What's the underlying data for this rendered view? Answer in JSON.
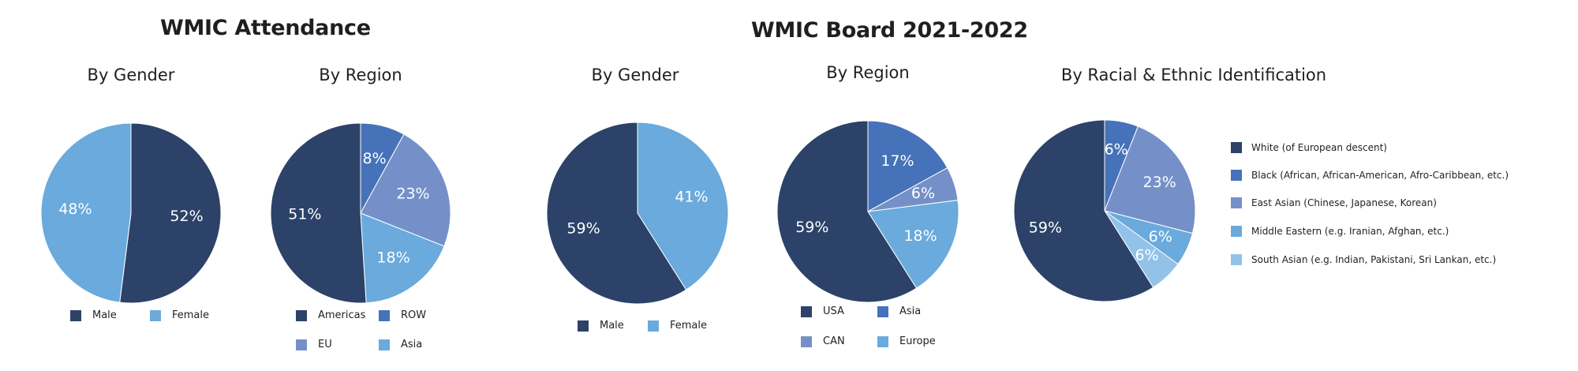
{
  "colors": {
    "navy": "#2c4268",
    "blue": "#4672b9",
    "periwinkle": "#7590c8",
    "sky": "#6aaadc",
    "light": "#93c2e8"
  },
  "headings": {
    "attendance": "WMIC Attendance",
    "board": "WMIC Board 2021-2022"
  },
  "chart_data": [
    {
      "type": "pie",
      "group": "WMIC Attendance",
      "title": "By Gender",
      "slices": [
        {
          "label": "Male",
          "value": 52,
          "display": "52%",
          "color": "#2c4268"
        },
        {
          "label": "Female",
          "value": 48,
          "display": "48%",
          "color": "#6aaadc"
        }
      ],
      "legend": [
        "Male",
        "Female"
      ],
      "legend_placement": "bottom"
    },
    {
      "type": "pie",
      "group": "WMIC Attendance",
      "title": "By Region",
      "slices": [
        {
          "label": "ROW",
          "value": 8,
          "display": "8%",
          "color": "#4672b9"
        },
        {
          "label": "EU",
          "value": 23,
          "display": "23%",
          "color": "#7590c8"
        },
        {
          "label": "Asia",
          "value": 18,
          "display": "18%",
          "color": "#6aaadc"
        },
        {
          "label": "Americas",
          "value": 51,
          "display": "51%",
          "color": "#2c4268"
        }
      ],
      "legend": [
        "Americas",
        "ROW",
        "EU",
        "Asia"
      ],
      "legend_placement": "bottom"
    },
    {
      "type": "pie",
      "group": "WMIC Board 2021-2022",
      "title": "By Gender",
      "slices": [
        {
          "label": "Female",
          "value": 41,
          "display": "41%",
          "color": "#6aaadc"
        },
        {
          "label": "Male",
          "value": 59,
          "display": "59%",
          "color": "#2c4268"
        }
      ],
      "legend": [
        "Male",
        "Female"
      ],
      "legend_placement": "bottom"
    },
    {
      "type": "pie",
      "group": "WMIC Board 2021-2022",
      "title": "By Region",
      "slices": [
        {
          "label": "Asia",
          "value": 17,
          "display": "17%",
          "color": "#4672b9"
        },
        {
          "label": "CAN",
          "value": 6,
          "display": "6%",
          "color": "#7590c8"
        },
        {
          "label": "Europe",
          "value": 18,
          "display": "18%",
          "color": "#6aaadc"
        },
        {
          "label": "USA",
          "value": 59,
          "display": "59%",
          "color": "#2c4268"
        }
      ],
      "legend": [
        "USA",
        "Asia",
        "CAN",
        "Europe"
      ],
      "legend_placement": "bottom"
    },
    {
      "type": "pie",
      "group": "WMIC Board 2021-2022",
      "title": "By Racial & Ethnic Identification",
      "slices": [
        {
          "label": "Black (African, African-American, Afro-Caribbean, etc.)",
          "value": 6,
          "display": "6%",
          "color": "#4672b9"
        },
        {
          "label": "East Asian (Chinese, Japanese, Korean)",
          "value": 23,
          "display": "23%",
          "color": "#7590c8"
        },
        {
          "label": "Middle Eastern (e.g. Iranian, Afghan, etc.)",
          "value": 6,
          "display": "6%",
          "color": "#6aaadc"
        },
        {
          "label": "South Asian (e.g. Indian, Pakistani, Sri Lankan, etc.)",
          "value": 6,
          "display": "6%",
          "color": "#93c2e8"
        },
        {
          "label": "White (of European descent)",
          "value": 59,
          "display": "59%",
          "color": "#2c4268"
        }
      ],
      "legend": [
        "White (of European descent)",
        "Black (African, African-American, Afro-Caribbean, etc.)",
        "East Asian (Chinese, Japanese, Korean)",
        "Middle Eastern (e.g. Iranian, Afghan, etc.)",
        "South Asian (e.g. Indian, Pakistani, Sri Lankan, etc.)"
      ],
      "legend_placement": "right"
    }
  ]
}
